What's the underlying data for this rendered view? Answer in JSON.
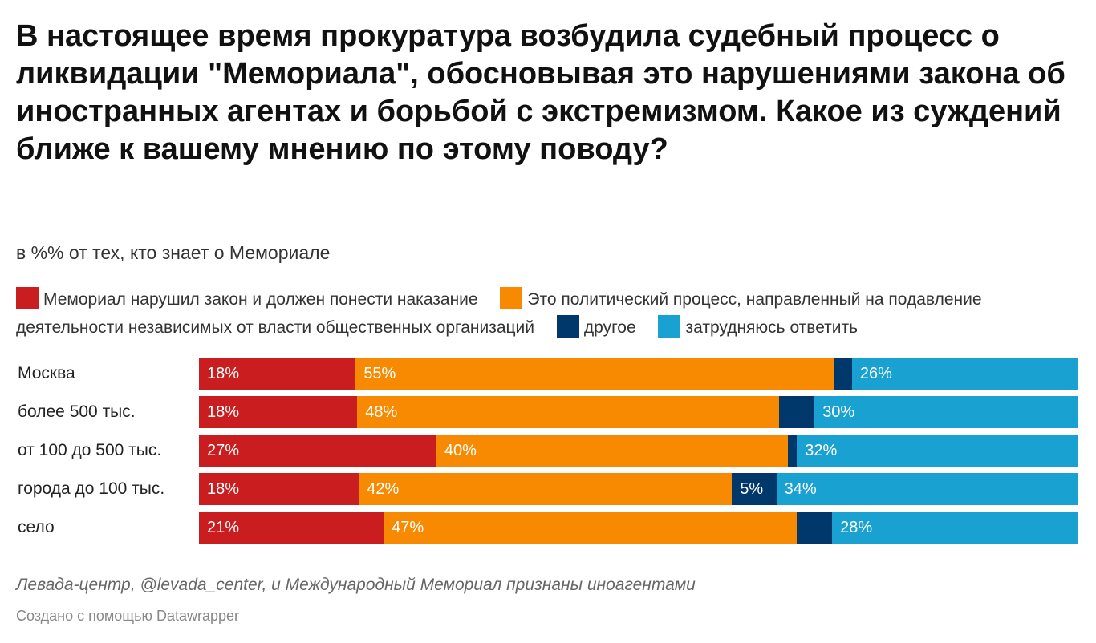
{
  "title": "В настоящее время прокуратура возбудила судебный процесс о ликвидации \"Мемориала\", обосновывая это нарушениями закона об иностранных агентах и борьбой с экстремизмом. Какое из суждений ближе к вашему мнению по этому поводу?",
  "subtitle": "в %% от тех, кто знает о Мемориале",
  "note": "Левада-центр, @levada_center, и Международный Мемориал признаны иноагентами",
  "credit": "Создано с помощью Datawrapper",
  "colors": {
    "red": "#c91d20",
    "orange": "#f78a00",
    "navy": "#00386b",
    "lightblue": "#18a1d1"
  },
  "chart_data": {
    "type": "bar",
    "orientation": "horizontal",
    "stacked": true,
    "percent_stacked": true,
    "title": "В настоящее время прокуратура возбудила судебный процесс о ликвидации \"Мемориала\", обосновывая это нарушениями закона об иностранных агентах и борьбой с экстремизмом. Какое из суждений ближе к вашему мнению по этому поводу?",
    "subtitle": "в %% от тех, кто знает о Мемориале",
    "categories": [
      "Москва",
      "более 500 тыс.",
      "от 100 до 500 тыс.",
      "города до 100 тыс.",
      "село"
    ],
    "legend_position": "top",
    "series": [
      {
        "name": "Мемориал нарушил закон и должен понести наказание",
        "color": "#c91d20",
        "values": [
          18,
          18,
          27,
          18,
          21
        ],
        "labels": [
          "18%",
          "18%",
          "27%",
          "18%",
          "21%"
        ]
      },
      {
        "name": "Это политический процесс, направленный на подавление деятельности независимых от власти общественных организаций",
        "color": "#f78a00",
        "values": [
          55,
          48,
          40,
          42,
          47
        ],
        "labels": [
          "55%",
          "48%",
          "40%",
          "42%",
          "47%"
        ]
      },
      {
        "name": "другое",
        "color": "#00386b",
        "values": [
          2,
          4,
          1,
          5,
          4
        ],
        "labels": [
          "",
          "",
          "",
          "5%",
          ""
        ]
      },
      {
        "name": "затрудняюсь ответить",
        "color": "#18a1d1",
        "values": [
          26,
          30,
          32,
          34,
          28
        ],
        "labels": [
          "26%",
          "30%",
          "32%",
          "34%",
          "28%"
        ]
      }
    ]
  }
}
